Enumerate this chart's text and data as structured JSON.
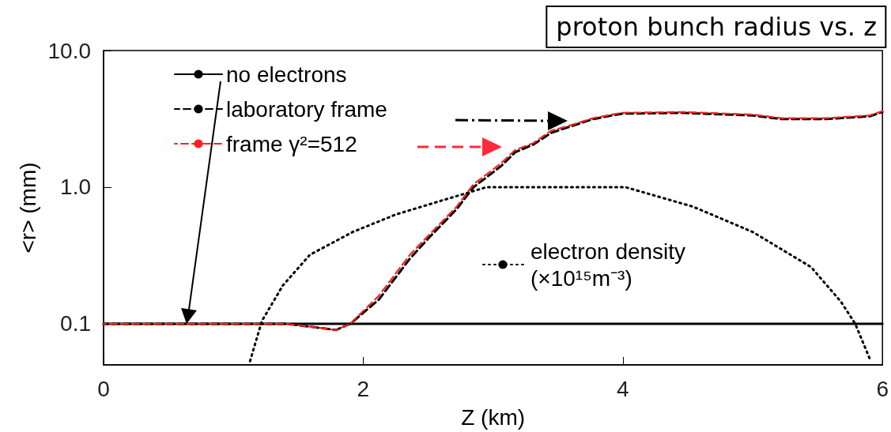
{
  "chart_data": {
    "type": "line",
    "title": "proton bunch radius vs. z",
    "xlabel": "Z (km)",
    "ylabel": "<r> (mm)",
    "xlim": [
      0,
      6
    ],
    "xticks": [
      0,
      2,
      4,
      6
    ],
    "ylim": [
      0.05,
      10
    ],
    "yticks": [
      {
        "value": 0.1,
        "label": "0.1"
      },
      {
        "value": 1,
        "label": "1.0"
      },
      {
        "value": 10,
        "label": "10.0"
      }
    ],
    "log": "y",
    "grid": false,
    "legend": "top left",
    "marker": "none",
    "series": [
      {
        "name": "no electrons",
        "color": "#000000",
        "line_style": "solid",
        "x": [
          0,
          0.5,
          1,
          1.5,
          2,
          2.5,
          3,
          3.5,
          4,
          4.5,
          5,
          5.5,
          6
        ],
        "values": [
          0.1,
          0.1,
          0.1,
          0.1,
          0.1,
          0.1,
          0.1,
          0.1,
          0.1,
          0.1,
          0.1,
          0.1,
          0.1
        ]
      },
      {
        "name": "laboratory frame",
        "color": "#000000",
        "line_style": "dashed",
        "x": [
          0,
          0.5,
          1,
          1.4,
          1.6,
          1.79,
          1.9,
          2.12,
          2.36,
          2.51,
          2.72,
          2.85,
          3.06,
          3.17,
          3.31,
          3.45,
          3.58,
          3.77,
          3.99,
          4.45,
          5.0,
          5.22,
          5.56,
          5.9,
          6.0
        ],
        "values": [
          0.1,
          0.1,
          0.1,
          0.1,
          0.095,
          0.09,
          0.1,
          0.15,
          0.3,
          0.43,
          0.69,
          1.0,
          1.42,
          1.8,
          2.05,
          2.5,
          2.75,
          3.15,
          3.45,
          3.5,
          3.35,
          3.15,
          3.15,
          3.3,
          3.55
        ]
      },
      {
        "name": "frame γ²=512",
        "color": "#ff2020",
        "line_style": "dashed",
        "x": [
          0,
          0.5,
          1,
          1.4,
          1.6,
          1.79,
          1.9,
          2.12,
          2.36,
          2.51,
          2.72,
          2.85,
          3.06,
          3.17,
          3.31,
          3.45,
          3.58,
          3.77,
          3.99,
          4.45,
          5.0,
          5.22,
          5.56,
          5.9,
          6.0
        ],
        "values": [
          0.1,
          0.1,
          0.1,
          0.1,
          0.095,
          0.09,
          0.1,
          0.16,
          0.32,
          0.45,
          0.72,
          1.05,
          1.49,
          1.87,
          2.1,
          2.6,
          2.8,
          3.2,
          3.5,
          3.55,
          3.4,
          3.2,
          3.2,
          3.35,
          3.6
        ]
      },
      {
        "name": "electron density\n(×10¹⁵m⁻³)",
        "color": "#000000",
        "line_style": "dotted",
        "x": [
          1.12,
          1.22,
          1.38,
          1.59,
          1.92,
          2.25,
          2.59,
          2.95,
          3.5,
          4.02,
          4.54,
          5.0,
          5.45,
          5.68,
          5.79,
          5.9
        ],
        "values": [
          0.05,
          0.105,
          0.19,
          0.32,
          0.47,
          0.63,
          0.79,
          1.0,
          1.0,
          1.0,
          0.72,
          0.47,
          0.26,
          0.145,
          0.1,
          0.056
        ]
      }
    ]
  }
}
